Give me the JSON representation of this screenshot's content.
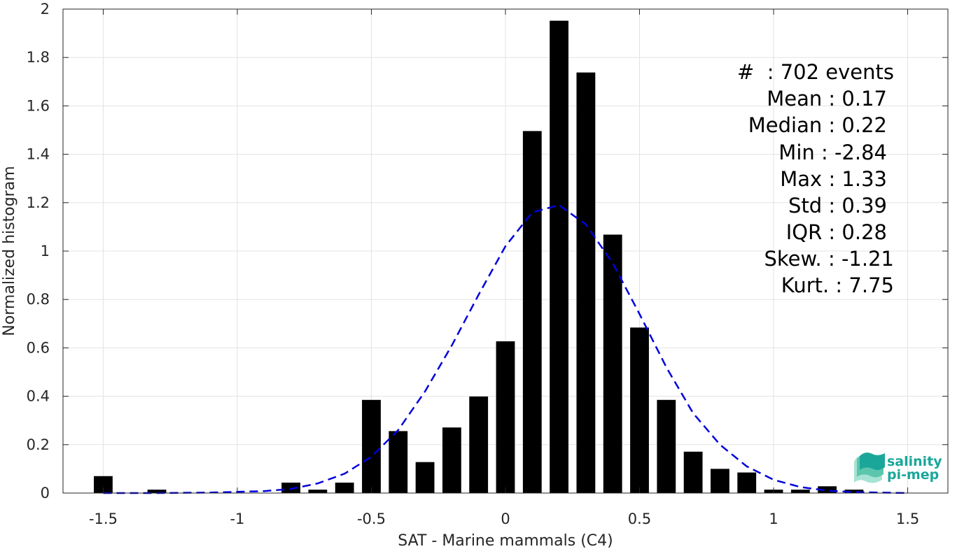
{
  "chart_data": {
    "type": "bar",
    "xlabel": "SAT - Marine mammals (C4)",
    "ylabel": "Normalized histogram",
    "xlim": [
      -1.65,
      1.65
    ],
    "ylim": [
      0,
      2
    ],
    "xticks": [
      -1.5,
      -1,
      -0.5,
      0,
      0.5,
      1,
      1.5
    ],
    "xtick_labels": [
      "-1.5",
      "-1",
      "-0.5",
      "0",
      "0.5",
      "1",
      "1.5"
    ],
    "yticks": [
      0,
      0.2,
      0.4,
      0.6,
      0.8,
      1,
      1.2,
      1.4,
      1.6,
      1.8,
      2
    ],
    "ytick_labels": [
      "0",
      "0.2",
      "0.4",
      "0.6",
      "0.8",
      "1",
      "1.2",
      "1.4",
      "1.6",
      "1.8",
      "2"
    ],
    "grid": true,
    "bin_width": 0.1,
    "bar_color": "#000000",
    "bars": [
      {
        "x": -1.5,
        "y": 0.07
      },
      {
        "x": -1.3,
        "y": 0.014
      },
      {
        "x": -0.8,
        "y": 0.043
      },
      {
        "x": -0.7,
        "y": 0.014
      },
      {
        "x": -0.6,
        "y": 0.043
      },
      {
        "x": -0.5,
        "y": 0.385
      },
      {
        "x": -0.4,
        "y": 0.256
      },
      {
        "x": -0.3,
        "y": 0.128
      },
      {
        "x": -0.2,
        "y": 0.271
      },
      {
        "x": -0.1,
        "y": 0.399
      },
      {
        "x": 0.0,
        "y": 0.627
      },
      {
        "x": 0.1,
        "y": 1.496
      },
      {
        "x": 0.2,
        "y": 1.952
      },
      {
        "x": 0.3,
        "y": 1.738
      },
      {
        "x": 0.4,
        "y": 1.068
      },
      {
        "x": 0.5,
        "y": 0.684
      },
      {
        "x": 0.6,
        "y": 0.385
      },
      {
        "x": 0.7,
        "y": 0.171
      },
      {
        "x": 0.8,
        "y": 0.1
      },
      {
        "x": 0.9,
        "y": 0.085
      },
      {
        "x": 1.0,
        "y": 0.014
      },
      {
        "x": 1.1,
        "y": 0.014
      },
      {
        "x": 1.2,
        "y": 0.028
      },
      {
        "x": 1.3,
        "y": 0.014
      }
    ],
    "fit_curve": {
      "style": "dashed",
      "color": "#0000dd",
      "points": [
        {
          "x": -1.5,
          "y": 0.0
        },
        {
          "x": -1.3,
          "y": 0.0
        },
        {
          "x": -1.1,
          "y": 0.002
        },
        {
          "x": -0.9,
          "y": 0.008
        },
        {
          "x": -0.8,
          "y": 0.017
        },
        {
          "x": -0.7,
          "y": 0.04
        },
        {
          "x": -0.6,
          "y": 0.08
        },
        {
          "x": -0.5,
          "y": 0.15
        },
        {
          "x": -0.4,
          "y": 0.26
        },
        {
          "x": -0.3,
          "y": 0.42
        },
        {
          "x": -0.2,
          "y": 0.61
        },
        {
          "x": -0.1,
          "y": 0.82
        },
        {
          "x": 0.0,
          "y": 1.02
        },
        {
          "x": 0.1,
          "y": 1.16
        },
        {
          "x": 0.2,
          "y": 1.19
        },
        {
          "x": 0.3,
          "y": 1.11
        },
        {
          "x": 0.4,
          "y": 0.95
        },
        {
          "x": 0.5,
          "y": 0.74
        },
        {
          "x": 0.6,
          "y": 0.52
        },
        {
          "x": 0.7,
          "y": 0.33
        },
        {
          "x": 0.8,
          "y": 0.2
        },
        {
          "x": 0.9,
          "y": 0.11
        },
        {
          "x": 1.0,
          "y": 0.055
        },
        {
          "x": 1.1,
          "y": 0.025
        },
        {
          "x": 1.2,
          "y": 0.01
        },
        {
          "x": 1.3,
          "y": 0.004
        },
        {
          "x": 1.5,
          "y": 0.0
        }
      ]
    }
  },
  "stats": {
    "count": "#  : 702 events",
    "mean": "Mean : 0.17",
    "median": "Median : 0.22",
    "min": "Min : -2.84",
    "max": "Max : 1.33",
    "std": "Std : 0.39",
    "iqr": "IQR : 0.28",
    "skew": "Skew. : -1.21",
    "kurt": "Kurt. : 7.75"
  },
  "logo": {
    "line1": "salinity",
    "line2": "pi-mep",
    "color": "#1aa79a"
  }
}
